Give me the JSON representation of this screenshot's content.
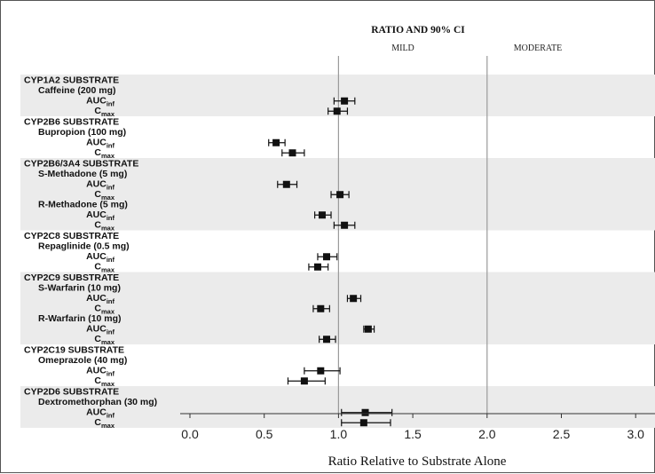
{
  "chart_data": {
    "type": "forest",
    "title": "RATIO AND 90% CI",
    "region_labels": [
      "MILD",
      "MODERATE"
    ],
    "xlabel": "Ratio Relative to Substrate Alone",
    "xlim": [
      -0.1,
      3.1
    ],
    "xticks": [
      "0.0",
      "0.5",
      "1.0",
      "1.5",
      "2.0",
      "2.5",
      "3.0"
    ],
    "xtick_values": [
      0.0,
      0.5,
      1.0,
      1.5,
      2.0,
      2.5,
      3.0
    ],
    "reference_lines": [
      1.0,
      2.0
    ],
    "colors": {
      "band": "#ebebeb",
      "marker": "#111111",
      "refline": "#9a9a9a"
    },
    "groups": [
      {
        "name": "CYP1A2 SUBSTRATE",
        "banded": true,
        "lines": [
          {
            "label": "Caffeine (200 mg)",
            "kind": "drug"
          },
          {
            "label": "AUC",
            "sub": "inf",
            "kind": "param",
            "est": 1.04,
            "lo": 0.97,
            "hi": 1.11
          },
          {
            "label": "C",
            "sub": "max",
            "kind": "param",
            "est": 0.99,
            "lo": 0.93,
            "hi": 1.06
          }
        ]
      },
      {
        "name": "CYP2B6 SUBSTRATE",
        "banded": false,
        "lines": [
          {
            "label": "Bupropion (100 mg)",
            "kind": "drug"
          },
          {
            "label": "AUC",
            "sub": "inf",
            "kind": "param",
            "est": 0.58,
            "lo": 0.53,
            "hi": 0.64
          },
          {
            "label": "C",
            "sub": "max",
            "kind": "param",
            "est": 0.69,
            "lo": 0.62,
            "hi": 0.77
          }
        ]
      },
      {
        "name": "CYP2B6/3A4 SUBSTRATE",
        "banded": true,
        "lines": [
          {
            "label": "S-Methadone (5 mg)",
            "kind": "drug"
          },
          {
            "label": "AUC",
            "sub": "inf",
            "kind": "param",
            "est": 0.65,
            "lo": 0.59,
            "hi": 0.72
          },
          {
            "label": "C",
            "sub": "max",
            "kind": "param",
            "est": 1.01,
            "lo": 0.95,
            "hi": 1.07
          },
          {
            "label": "R-Methadone (5 mg)",
            "kind": "drug"
          },
          {
            "label": "AUC",
            "sub": "inf",
            "kind": "param",
            "est": 0.89,
            "lo": 0.84,
            "hi": 0.95
          },
          {
            "label": "C",
            "sub": "max",
            "kind": "param",
            "est": 1.04,
            "lo": 0.97,
            "hi": 1.11
          }
        ]
      },
      {
        "name": "CYP2C8 SUBSTRATE",
        "banded": false,
        "lines": [
          {
            "label": "Repaglinide (0.5 mg)",
            "kind": "drug"
          },
          {
            "label": "AUC",
            "sub": "inf",
            "kind": "param",
            "est": 0.92,
            "lo": 0.86,
            "hi": 0.99
          },
          {
            "label": "C",
            "sub": "max",
            "kind": "param",
            "est": 0.86,
            "lo": 0.8,
            "hi": 0.93
          }
        ]
      },
      {
        "name": "CYP2C9 SUBSTRATE",
        "banded": true,
        "lines": [
          {
            "label": "S-Warfarin (10 mg)",
            "kind": "drug"
          },
          {
            "label": "AUC",
            "sub": "inf",
            "kind": "param",
            "est": 1.1,
            "lo": 1.06,
            "hi": 1.15
          },
          {
            "label": "C",
            "sub": "max",
            "kind": "param",
            "est": 0.88,
            "lo": 0.83,
            "hi": 0.94
          },
          {
            "label": "R-Warfarin (10 mg)",
            "kind": "drug"
          },
          {
            "label": "AUC",
            "sub": "inf",
            "kind": "param",
            "est": 1.2,
            "lo": 1.17,
            "hi": 1.24
          },
          {
            "label": "C",
            "sub": "max",
            "kind": "param",
            "est": 0.92,
            "lo": 0.87,
            "hi": 0.98
          }
        ]
      },
      {
        "name": "CYP2C19 SUBSTRATE",
        "banded": false,
        "lines": [
          {
            "label": "Omeprazole (40 mg)",
            "kind": "drug"
          },
          {
            "label": "AUC",
            "sub": "inf",
            "kind": "param",
            "est": 0.88,
            "lo": 0.77,
            "hi": 1.01
          },
          {
            "label": "C",
            "sub": "max",
            "kind": "param",
            "est": 0.77,
            "lo": 0.66,
            "hi": 0.91
          }
        ]
      },
      {
        "name": "CYP2D6 SUBSTRATE",
        "banded": true,
        "lines": [
          {
            "label": "Dextromethorphan (30 mg)",
            "kind": "drug"
          },
          {
            "label": "AUC",
            "sub": "inf",
            "kind": "param",
            "est": 1.18,
            "lo": 1.02,
            "hi": 1.36
          },
          {
            "label": "C",
            "sub": "max",
            "kind": "param",
            "est": 1.17,
            "lo": 1.02,
            "hi": 1.35
          }
        ]
      }
    ]
  }
}
